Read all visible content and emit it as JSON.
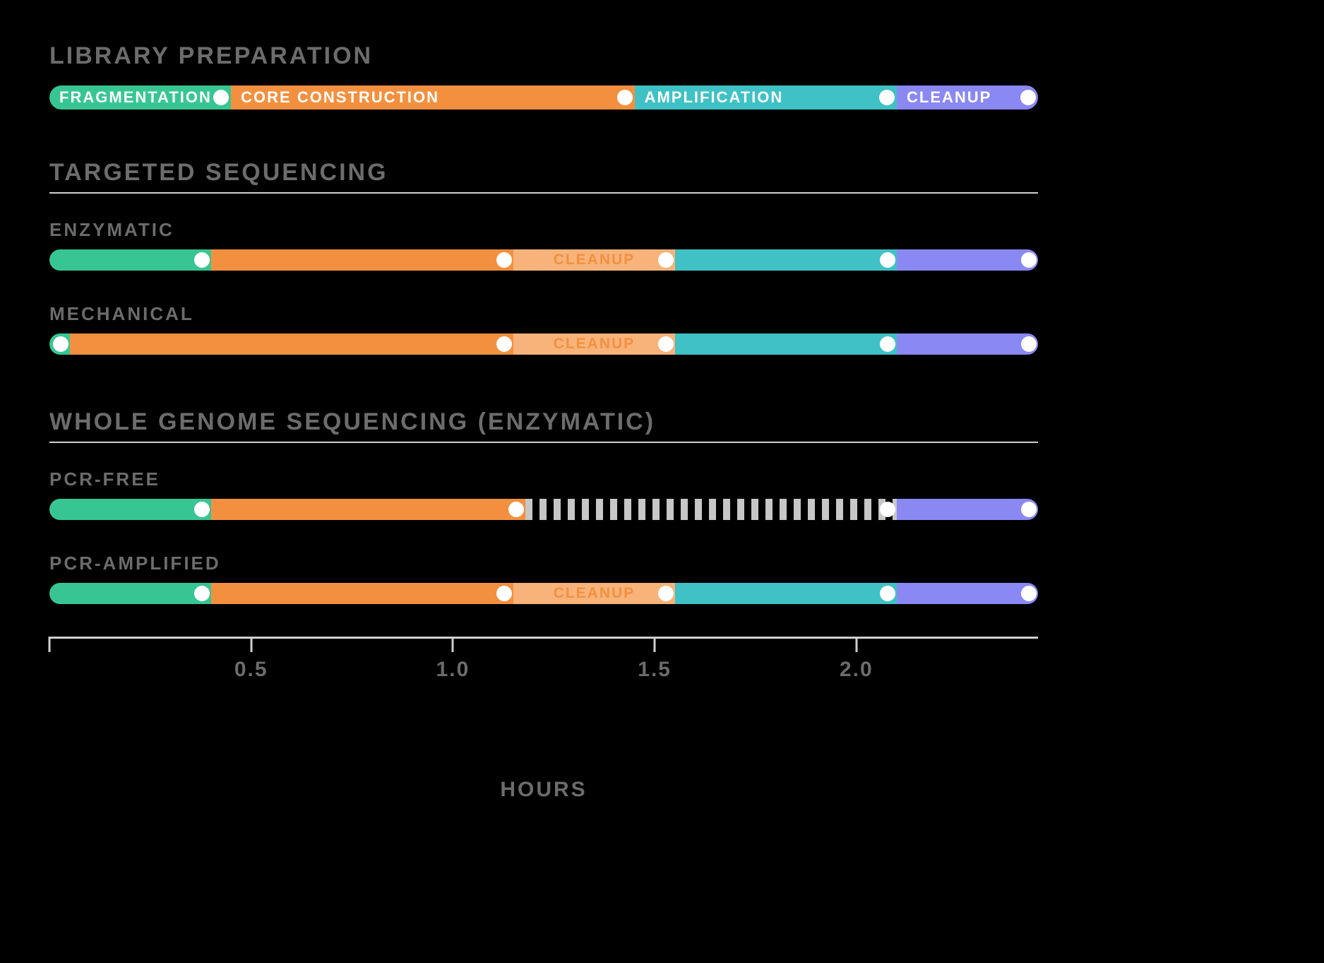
{
  "colors": {
    "fragmentation": "#37c693",
    "core": "#f3903f",
    "cleanup_light": "#f7b37a",
    "amplification": "#3fc1c5",
    "cleanup_final": "#8a88f2",
    "hatched_light": "#c7c7c7",
    "text_muted": "#6c6c6c",
    "divider": "#cfcfcf",
    "dot": "#ffffff",
    "core_text": "#f3903f",
    "bg": "#000000"
  },
  "title": "LIBRARY PREPARATION",
  "axis": {
    "title": "HOURS",
    "min": 0,
    "max": 2.45,
    "ticks": [
      0,
      0.5,
      1.0,
      1.5,
      2.0
    ],
    "labels": [
      "",
      "0.5",
      "1.0",
      "1.5",
      "2.0"
    ]
  },
  "legend": {
    "segments": [
      {
        "label": "FRAGMENTATION",
        "color_key": "fragmentation",
        "start": 0,
        "end": 0.45
      },
      {
        "label": "CORE CONSTRUCTION",
        "color_key": "core",
        "start": 0.45,
        "end": 1.45
      },
      {
        "label": "AMPLIFICATION",
        "color_key": "amplification",
        "start": 1.45,
        "end": 2.1
      },
      {
        "label": "CLEANUP",
        "color_key": "cleanup_final",
        "start": 2.1,
        "end": 2.45
      }
    ]
  },
  "sections": [
    {
      "title": "TARGETED SEQUENCING",
      "rows": [
        {
          "label": "ENZYMATIC",
          "segments": [
            {
              "color_key": "fragmentation",
              "start": 0,
              "end": 0.4,
              "dot_end": true
            },
            {
              "color_key": "core",
              "start": 0.4,
              "end": 1.15,
              "dot_end": true
            },
            {
              "color_key": "cleanup_light",
              "start": 1.15,
              "end": 1.55,
              "dot_end": true,
              "inner_label": "CLEANUP",
              "label_color_key": "core_text"
            },
            {
              "color_key": "amplification",
              "start": 1.55,
              "end": 2.1,
              "dot_end": true
            },
            {
              "color_key": "cleanup_final",
              "start": 2.1,
              "end": 2.45,
              "dot_end": true
            }
          ]
        },
        {
          "label": "MECHANICAL",
          "segments": [
            {
              "color_key": "fragmentation",
              "start": 0,
              "end": 0.05,
              "dot_end": true
            },
            {
              "color_key": "core",
              "start": 0.05,
              "end": 1.15,
              "dot_end": true
            },
            {
              "color_key": "cleanup_light",
              "start": 1.15,
              "end": 1.55,
              "dot_end": true,
              "inner_label": "CLEANUP",
              "label_color_key": "core_text"
            },
            {
              "color_key": "amplification",
              "start": 1.55,
              "end": 2.1,
              "dot_end": true
            },
            {
              "color_key": "cleanup_final",
              "start": 2.1,
              "end": 2.45,
              "dot_end": true
            }
          ]
        }
      ]
    },
    {
      "title": "WHOLE GENOME SEQUENCING (ENZYMATIC)",
      "rows": [
        {
          "label": "PCR-FREE",
          "segments": [
            {
              "color_key": "fragmentation",
              "start": 0,
              "end": 0.4,
              "dot_end": true
            },
            {
              "color_key": "core",
              "start": 0.4,
              "end": 1.18,
              "dot_end": true
            },
            {
              "hatched": true,
              "start": 1.18,
              "end": 2.1,
              "dot_end": true
            },
            {
              "color_key": "cleanup_final",
              "start": 2.1,
              "end": 2.45,
              "dot_end": true
            }
          ]
        },
        {
          "label": "PCR-AMPLIFIED",
          "segments": [
            {
              "color_key": "fragmentation",
              "start": 0,
              "end": 0.4,
              "dot_end": true
            },
            {
              "color_key": "core",
              "start": 0.4,
              "end": 1.15,
              "dot_end": true
            },
            {
              "color_key": "cleanup_light",
              "start": 1.15,
              "end": 1.55,
              "dot_end": true,
              "inner_label": "CLEANUP",
              "label_color_key": "core_text"
            },
            {
              "color_key": "amplification",
              "start": 1.55,
              "end": 2.1,
              "dot_end": true
            },
            {
              "color_key": "cleanup_final",
              "start": 2.1,
              "end": 2.45,
              "dot_end": true
            }
          ]
        }
      ]
    }
  ]
}
